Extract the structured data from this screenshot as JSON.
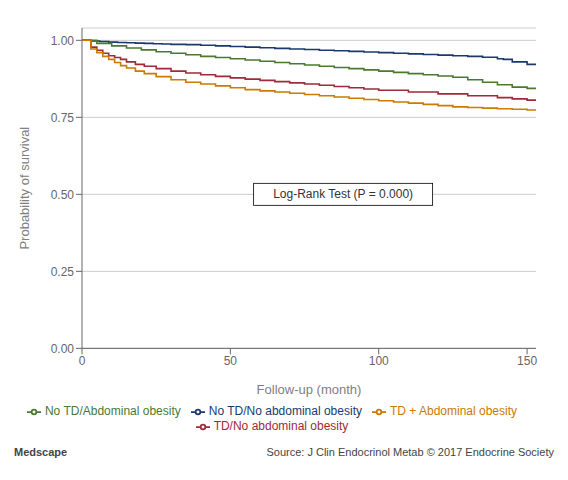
{
  "chart_data": {
    "type": "line",
    "line_style": "step",
    "xlabel": "Follow-up (month)",
    "ylabel": "Probability of survival",
    "xlim": [
      0,
      153
    ],
    "ylim": [
      0.0,
      1.04
    ],
    "xticks": [
      0,
      50,
      100,
      150
    ],
    "yticks": [
      {
        "value": 0.0,
        "label": "0.00"
      },
      {
        "value": 0.25,
        "label": "0.25"
      },
      {
        "value": 0.5,
        "label": "0.50"
      },
      {
        "value": 0.75,
        "label": "0.75"
      },
      {
        "value": 1.0,
        "label": "1.00"
      }
    ],
    "grid": true,
    "legend": "bottom",
    "annotations": [
      {
        "text": "Log-Rank Test (P = 0.000)",
        "x": 88,
        "y": 0.5
      },
      {
        "text": "Medscape"
      },
      {
        "text": "Source: J Clin Endocrinol Metab © 2017 Endocrine Society"
      }
    ],
    "series": [
      {
        "name": "No TD/No abdominal obesity",
        "color": "#1a3a6e",
        "x": [
          0,
          3,
          6,
          9,
          12,
          15,
          18,
          21,
          24,
          27,
          30,
          35,
          40,
          45,
          50,
          55,
          60,
          65,
          70,
          75,
          80,
          85,
          90,
          95,
          100,
          105,
          110,
          115,
          120,
          125,
          130,
          135,
          140,
          142,
          145,
          150,
          153
        ],
        "values": [
          1.0,
          0.998,
          0.996,
          0.994,
          0.993,
          0.992,
          0.991,
          0.99,
          0.989,
          0.988,
          0.987,
          0.986,
          0.984,
          0.982,
          0.98,
          0.978,
          0.976,
          0.974,
          0.972,
          0.97,
          0.968,
          0.966,
          0.964,
          0.962,
          0.96,
          0.958,
          0.956,
          0.954,
          0.952,
          0.95,
          0.948,
          0.945,
          0.94,
          0.938,
          0.93,
          0.922,
          0.92
        ]
      },
      {
        "name": "TD/No abdominal obesity",
        "color": "#9e2a3a",
        "x": [
          0,
          3,
          5,
          7,
          9,
          11,
          13,
          15,
          18,
          21,
          25,
          30,
          35,
          40,
          45,
          50,
          55,
          60,
          65,
          70,
          75,
          80,
          85,
          90,
          95,
          100,
          110,
          120,
          130,
          140,
          145,
          150,
          153
        ],
        "values": [
          1.0,
          0.978,
          0.968,
          0.958,
          0.95,
          0.944,
          0.938,
          0.93,
          0.922,
          0.916,
          0.908,
          0.9,
          0.894,
          0.888,
          0.883,
          0.878,
          0.874,
          0.87,
          0.866,
          0.862,
          0.858,
          0.854,
          0.85,
          0.846,
          0.842,
          0.838,
          0.832,
          0.826,
          0.82,
          0.814,
          0.81,
          0.806,
          0.804
        ]
      },
      {
        "name": "No TD/Abdominal obesity",
        "color": "#4a7a30",
        "x": [
          0,
          5,
          10,
          15,
          20,
          25,
          30,
          35,
          40,
          45,
          50,
          55,
          60,
          65,
          70,
          75,
          80,
          85,
          90,
          95,
          100,
          105,
          110,
          115,
          120,
          125,
          130,
          135,
          140,
          145,
          150,
          153
        ],
        "values": [
          1.0,
          0.99,
          0.982,
          0.975,
          0.969,
          0.963,
          0.958,
          0.953,
          0.948,
          0.944,
          0.94,
          0.936,
          0.932,
          0.928,
          0.924,
          0.92,
          0.916,
          0.912,
          0.908,
          0.904,
          0.9,
          0.896,
          0.892,
          0.888,
          0.884,
          0.88,
          0.872,
          0.864,
          0.856,
          0.848,
          0.844,
          0.842
        ]
      },
      {
        "name": "TD + Abdominal obesity",
        "color": "#cc7a00",
        "x": [
          0,
          3,
          5,
          7,
          9,
          11,
          13,
          15,
          18,
          21,
          25,
          30,
          35,
          40,
          45,
          50,
          55,
          60,
          65,
          70,
          75,
          80,
          85,
          90,
          95,
          100,
          105,
          110,
          115,
          120,
          125,
          130,
          135,
          140,
          145,
          150,
          153
        ],
        "values": [
          1.0,
          0.972,
          0.96,
          0.948,
          0.938,
          0.928,
          0.918,
          0.91,
          0.9,
          0.892,
          0.882,
          0.872,
          0.864,
          0.858,
          0.852,
          0.846,
          0.84,
          0.836,
          0.832,
          0.828,
          0.824,
          0.82,
          0.816,
          0.812,
          0.808,
          0.804,
          0.8,
          0.796,
          0.792,
          0.788,
          0.784,
          0.782,
          0.78,
          0.778,
          0.776,
          0.774,
          0.773
        ]
      }
    ]
  }
}
